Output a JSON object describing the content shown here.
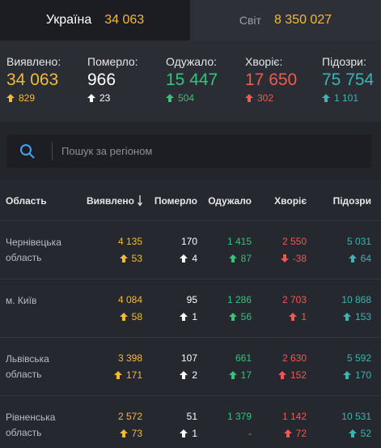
{
  "tabs": [
    {
      "label": "Україна",
      "value": "34 063"
    },
    {
      "label": "Світ",
      "value": "8 350 027"
    }
  ],
  "summary": [
    {
      "label": "Виявлено:",
      "value": "34 063",
      "delta": "829",
      "dir": "up",
      "color": "#f5b93a"
    },
    {
      "label": "Померло:",
      "value": "966",
      "delta": "23",
      "dir": "up",
      "color": "#ffffff"
    },
    {
      "label": "Одужало:",
      "value": "15 447",
      "delta": "504",
      "dir": "up",
      "color": "#35c37b"
    },
    {
      "label": "Хворіє:",
      "value": "17 650",
      "delta": "302",
      "dir": "up",
      "color": "#ee5a52"
    },
    {
      "label": "Підозри:",
      "value": "75 754",
      "delta": "1 101",
      "dir": "up",
      "color": "#3db3b3"
    }
  ],
  "search": {
    "placeholder": "Пошук за регіоном"
  },
  "table": {
    "headers": [
      "Область",
      "Виявлено",
      "Померло",
      "Одужало",
      "Хворіє",
      "Підозри"
    ],
    "rows": [
      {
        "region": "Чернівецька область",
        "cells": [
          {
            "value": "4 135",
            "delta": "53",
            "dir": "up"
          },
          {
            "value": "170",
            "delta": "4",
            "dir": "up"
          },
          {
            "value": "1 415",
            "delta": "87",
            "dir": "up"
          },
          {
            "value": "2 550",
            "delta": "-38",
            "dir": "down"
          },
          {
            "value": "5 031",
            "delta": "64",
            "dir": "up"
          }
        ]
      },
      {
        "region": "м. Київ",
        "cells": [
          {
            "value": "4 084",
            "delta": "58",
            "dir": "up"
          },
          {
            "value": "95",
            "delta": "1",
            "dir": "up"
          },
          {
            "value": "1 286",
            "delta": "56",
            "dir": "up"
          },
          {
            "value": "2 703",
            "delta": "1",
            "dir": "up"
          },
          {
            "value": "10 868",
            "delta": "153",
            "dir": "up"
          }
        ]
      },
      {
        "region": "Львівська область",
        "cells": [
          {
            "value": "3 398",
            "delta": "171",
            "dir": "up"
          },
          {
            "value": "107",
            "delta": "2",
            "dir": "up"
          },
          {
            "value": "661",
            "delta": "17",
            "dir": "up"
          },
          {
            "value": "2 630",
            "delta": "152",
            "dir": "up"
          },
          {
            "value": "5 592",
            "delta": "170",
            "dir": "up"
          }
        ]
      },
      {
        "region": "Рівненська область",
        "cells": [
          {
            "value": "2 572",
            "delta": "73",
            "dir": "up"
          },
          {
            "value": "51",
            "delta": "1",
            "dir": "up"
          },
          {
            "value": "1 379",
            "delta": "-",
            "dir": "none"
          },
          {
            "value": "1 142",
            "delta": "72",
            "dir": "up"
          },
          {
            "value": "10 531",
            "delta": "52",
            "dir": "up"
          }
        ]
      }
    ]
  }
}
